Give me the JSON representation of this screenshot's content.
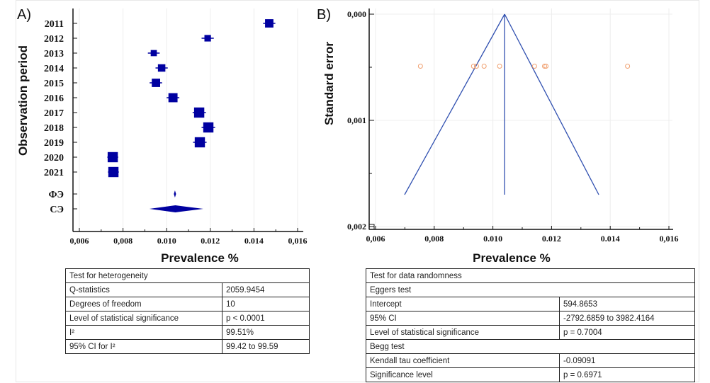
{
  "panels": {
    "a_label": "A)",
    "b_label": "B)"
  },
  "chart_data": [
    {
      "type": "forest",
      "panel": "A",
      "xlabel": "Prevalence %",
      "ylabel": "Observation period",
      "xlim": [
        0.006,
        0.016
      ],
      "xticks": [
        "0,006",
        "0,008",
        "0.010",
        "0.012",
        "0.014",
        "0,016"
      ],
      "xtick_values": [
        0.006,
        0.008,
        0.01,
        0.012,
        0.014,
        0.016
      ],
      "studies": [
        {
          "label": "2011",
          "estimate": 0.0147,
          "lo": 0.01455,
          "hi": 0.01485,
          "weight": 3
        },
        {
          "label": "2012",
          "estimate": 0.01188,
          "lo": 0.01173,
          "hi": 0.01203,
          "weight": 2
        },
        {
          "label": "2013",
          "estimate": 0.00941,
          "lo": 0.00927,
          "hi": 0.00955,
          "weight": 1.8
        },
        {
          "label": "2014",
          "estimate": 0.00977,
          "lo": 0.00962,
          "hi": 0.00992,
          "weight": 2.5
        },
        {
          "label": "2015",
          "estimate": 0.00951,
          "lo": 0.00935,
          "hi": 0.00966,
          "weight": 3
        },
        {
          "label": "2016",
          "estimate": 0.01029,
          "lo": 0.01013,
          "hi": 0.01045,
          "weight": 3.4
        },
        {
          "label": "2017",
          "estimate": 0.01149,
          "lo": 0.01132,
          "hi": 0.01167,
          "weight": 4
        },
        {
          "label": "2018",
          "estimate": 0.01191,
          "lo": 0.01173,
          "hi": 0.01209,
          "weight": 4
        },
        {
          "label": "2019",
          "estimate": 0.01152,
          "lo": 0.01134,
          "hi": 0.0117,
          "weight": 4
        },
        {
          "label": "2020",
          "estimate": 0.00753,
          "lo": 0.00741,
          "hi": 0.00765,
          "weight": 4
        },
        {
          "label": "2021",
          "estimate": 0.00756,
          "lo": 0.00744,
          "hi": 0.00768,
          "weight": 4
        }
      ],
      "pooled": [
        {
          "label": "ФЭ",
          "estimate": 0.01038,
          "lo": 0.01033,
          "hi": 0.01043
        },
        {
          "label": "СЭ",
          "estimate": 0.0104,
          "lo": 0.00921,
          "hi": 0.01168
        }
      ],
      "color": "#0000a0",
      "grid": true
    },
    {
      "type": "scatter",
      "subtype": "funnel",
      "panel": "B",
      "xlabel": "Prevalence %",
      "ylabel": "Standard error",
      "xlim": [
        0.006,
        0.016
      ],
      "ylim": [
        0.0,
        0.002
      ],
      "y_inverted": true,
      "xticks": [
        "0,006",
        "0,008",
        "0.010",
        "0.012",
        "0.014",
        "0,016"
      ],
      "xtick_values": [
        0.006,
        0.008,
        0.01,
        0.012,
        0.014,
        0.016
      ],
      "yticks": [
        "0,000",
        "0,001",
        "0,002"
      ],
      "ytick_values": [
        0.0,
        0.001,
        0.002
      ],
      "points": [
        {
          "x": 0.00753,
          "y": 0.00049
        },
        {
          "x": 0.00934,
          "y": 0.00049
        },
        {
          "x": 0.00944,
          "y": 0.00049
        },
        {
          "x": 0.0097,
          "y": 0.00049
        },
        {
          "x": 0.01023,
          "y": 0.00049
        },
        {
          "x": 0.01142,
          "y": 0.00049
        },
        {
          "x": 0.01176,
          "y": 0.00049
        },
        {
          "x": 0.01181,
          "y": 0.00049
        },
        {
          "x": 0.01459,
          "y": 0.00049
        }
      ],
      "pooled_estimate": 0.0104,
      "funnel": {
        "apex_se": 0.0,
        "base_se": 0.0017,
        "base_left": 0.00699,
        "base_right": 0.01361
      },
      "point_color": "#f0a070",
      "line_color": "#3050b0",
      "grid": true
    }
  ],
  "heterogeneity_table": {
    "title": "Test for heterogeneity",
    "rows": [
      {
        "label": "Q-statistics",
        "value": "2059.9454"
      },
      {
        "label": "Degrees of freedom",
        "value": "10"
      },
      {
        "label": "Level of statistical significance",
        "value": "p < 0.0001"
      },
      {
        "label": "I²",
        "value": "99.51%"
      },
      {
        "label": "95% CI for I²",
        "value": "99.42 to 99.59"
      }
    ]
  },
  "randomness_table": {
    "title": "Test for data randomness",
    "egger_title": "Eggers test",
    "egger_rows": [
      {
        "label": "Intercept",
        "value": "594.8653"
      },
      {
        "label": "95% CI",
        "value": "-2792.6859 to 3982.4164"
      },
      {
        "label": "Level of statistical significance",
        "value": "p = 0.7004"
      }
    ],
    "begg_title": "Begg test",
    "begg_rows": [
      {
        "label": "Kendall tau coefficient",
        "value": "-0.09091"
      },
      {
        "label": "Significance level",
        "value": "p = 0.6971"
      }
    ]
  }
}
